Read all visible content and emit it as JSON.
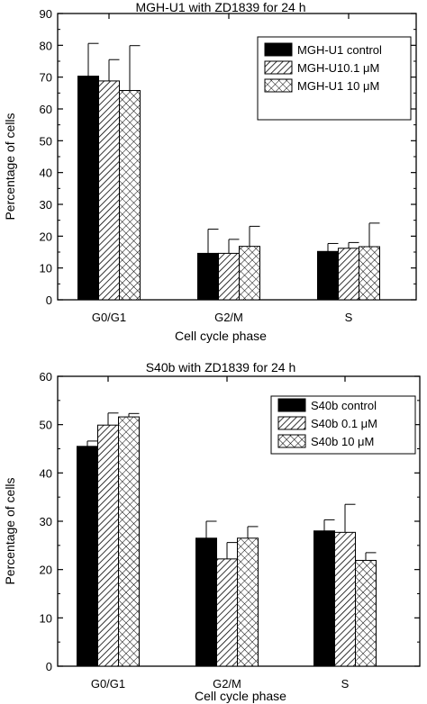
{
  "chart_data": [
    {
      "type": "bar",
      "title": "MGH-U1 with ZD1839 for 24 h",
      "xlabel": "Cell cycle phase",
      "ylabel": "Percentage of cells",
      "ylim": [
        0,
        90
      ],
      "yticks": [
        0,
        10,
        20,
        30,
        40,
        50,
        60,
        70,
        80,
        90
      ],
      "categories": [
        "G0/G1",
        "G2/M",
        "S"
      ],
      "legend_position": "top-right",
      "series": [
        {
          "name": "MGH-U1 control",
          "pattern": "solid",
          "values": [
            70.3,
            14.6,
            15.2
          ],
          "errors": [
            10.3,
            7.6,
            2.5
          ]
        },
        {
          "name": "MGH-U10.1 μM",
          "pattern": "hatch",
          "values": [
            68.8,
            14.6,
            16.2
          ],
          "errors": [
            6.7,
            4.4,
            1.8
          ]
        },
        {
          "name": "MGH-U1 10 μM",
          "pattern": "crosshatch",
          "values": [
            65.8,
            16.8,
            16.7
          ],
          "errors": [
            14.1,
            6.3,
            7.4
          ]
        }
      ]
    },
    {
      "type": "bar",
      "title": "S40b with ZD1839 for 24 h",
      "xlabel": "Cell cycle phase",
      "ylabel": "Percentage of cells",
      "ylim": [
        0,
        60
      ],
      "yticks": [
        0,
        10,
        20,
        30,
        40,
        50,
        60
      ],
      "categories": [
        "G0/G1",
        "G2/M",
        "S"
      ],
      "legend_position": "top-right",
      "series": [
        {
          "name": "S40b control",
          "pattern": "solid",
          "values": [
            45.5,
            26.5,
            28.0
          ],
          "errors": [
            1.1,
            3.5,
            2.3
          ]
        },
        {
          "name": "S40b 0.1 μM",
          "pattern": "hatch",
          "values": [
            49.9,
            22.2,
            27.7
          ],
          "errors": [
            2.5,
            3.4,
            5.8
          ]
        },
        {
          "name": "S40b 10 μM",
          "pattern": "crosshatch",
          "values": [
            51.6,
            26.5,
            21.9
          ],
          "errors": [
            0.7,
            2.4,
            1.6
          ]
        }
      ]
    }
  ]
}
